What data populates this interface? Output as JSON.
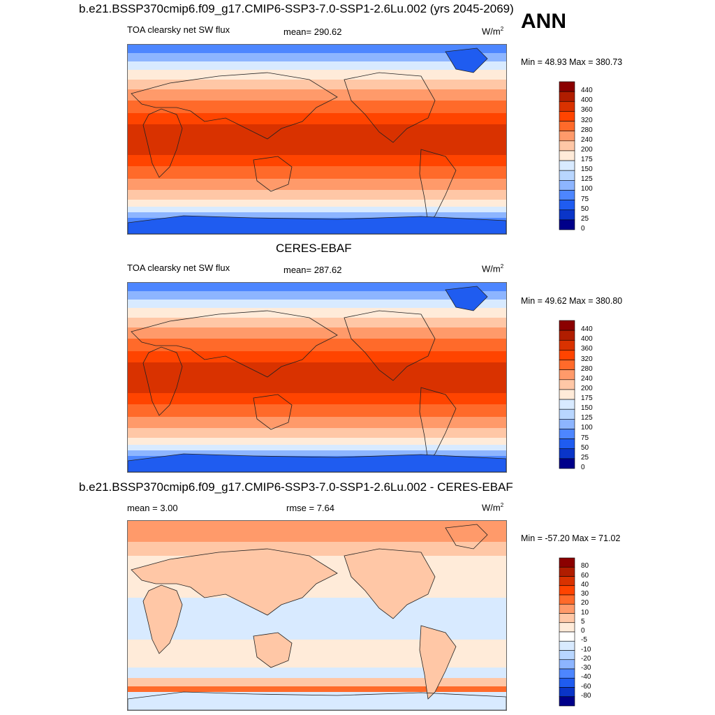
{
  "figure": {
    "ann_label": "ANN",
    "panels": [
      {
        "id": "model",
        "title": "b.e21.BSSP370cmip6.f09_g17.CMIP6-SSP3-7.0-SSP1-2.6Lu.002 (yrs 2045-2069)",
        "left_label": "TOA clearsky net SW flux",
        "center_label": "mean= 290.62",
        "units": "W/m",
        "units_sup": "2",
        "min_max": "Min =  48.93 Max = 380.73",
        "colorbar_labels": [
          "440",
          "400",
          "360",
          "320",
          "280",
          "240",
          "200",
          "175",
          "150",
          "125",
          "100",
          "75",
          "50",
          "25",
          "0"
        ],
        "colorbar_colors": [
          "#8b0000",
          "#b01d00",
          "#d93200",
          "#ff4400",
          "#ff6a2a",
          "#ff9a6a",
          "#ffc7a6",
          "#ffebd9",
          "#d8eaff",
          "#b8d6ff",
          "#8db5ff",
          "#4d86ff",
          "#1f5cf0",
          "#0a35c8",
          "#00008a"
        ]
      },
      {
        "id": "obs",
        "title": "CERES-EBAF",
        "left_label": "TOA clearsky net SW flux",
        "center_label": "mean= 287.62",
        "units": "W/m",
        "units_sup": "2",
        "min_max": "Min =  49.62 Max = 380.80",
        "colorbar_labels": [
          "440",
          "400",
          "360",
          "320",
          "280",
          "240",
          "200",
          "175",
          "150",
          "125",
          "100",
          "75",
          "50",
          "25",
          "0"
        ],
        "colorbar_colors": [
          "#8b0000",
          "#b01d00",
          "#d93200",
          "#ff4400",
          "#ff6a2a",
          "#ff9a6a",
          "#ffc7a6",
          "#ffebd9",
          "#d8eaff",
          "#b8d6ff",
          "#8db5ff",
          "#4d86ff",
          "#1f5cf0",
          "#0a35c8",
          "#00008a"
        ]
      },
      {
        "id": "diff",
        "title": "b.e21.BSSP370cmip6.f09_g17.CMIP6-SSP3-7.0-SSP1-2.6Lu.002 - CERES-EBAF",
        "left_label": "mean =   3.00",
        "center_label": "rmse =   7.64",
        "units": "W/m",
        "units_sup": "2",
        "min_max": "Min = -57.20 Max =  71.02",
        "colorbar_labels": [
          "80",
          "60",
          "40",
          "30",
          "20",
          "10",
          "5",
          "0",
          "-5",
          "-10",
          "-20",
          "-30",
          "-40",
          "-60",
          "-80"
        ],
        "colorbar_colors": [
          "#8b0000",
          "#b01d00",
          "#d93200",
          "#ff4400",
          "#ff6a2a",
          "#ff9a6a",
          "#ffc7a6",
          "#ffebd9",
          "#ffffff",
          "#d8eaff",
          "#b8d6ff",
          "#8db5ff",
          "#4d86ff",
          "#1f5cf0",
          "#0a35c8",
          "#00008a"
        ]
      }
    ]
  }
}
